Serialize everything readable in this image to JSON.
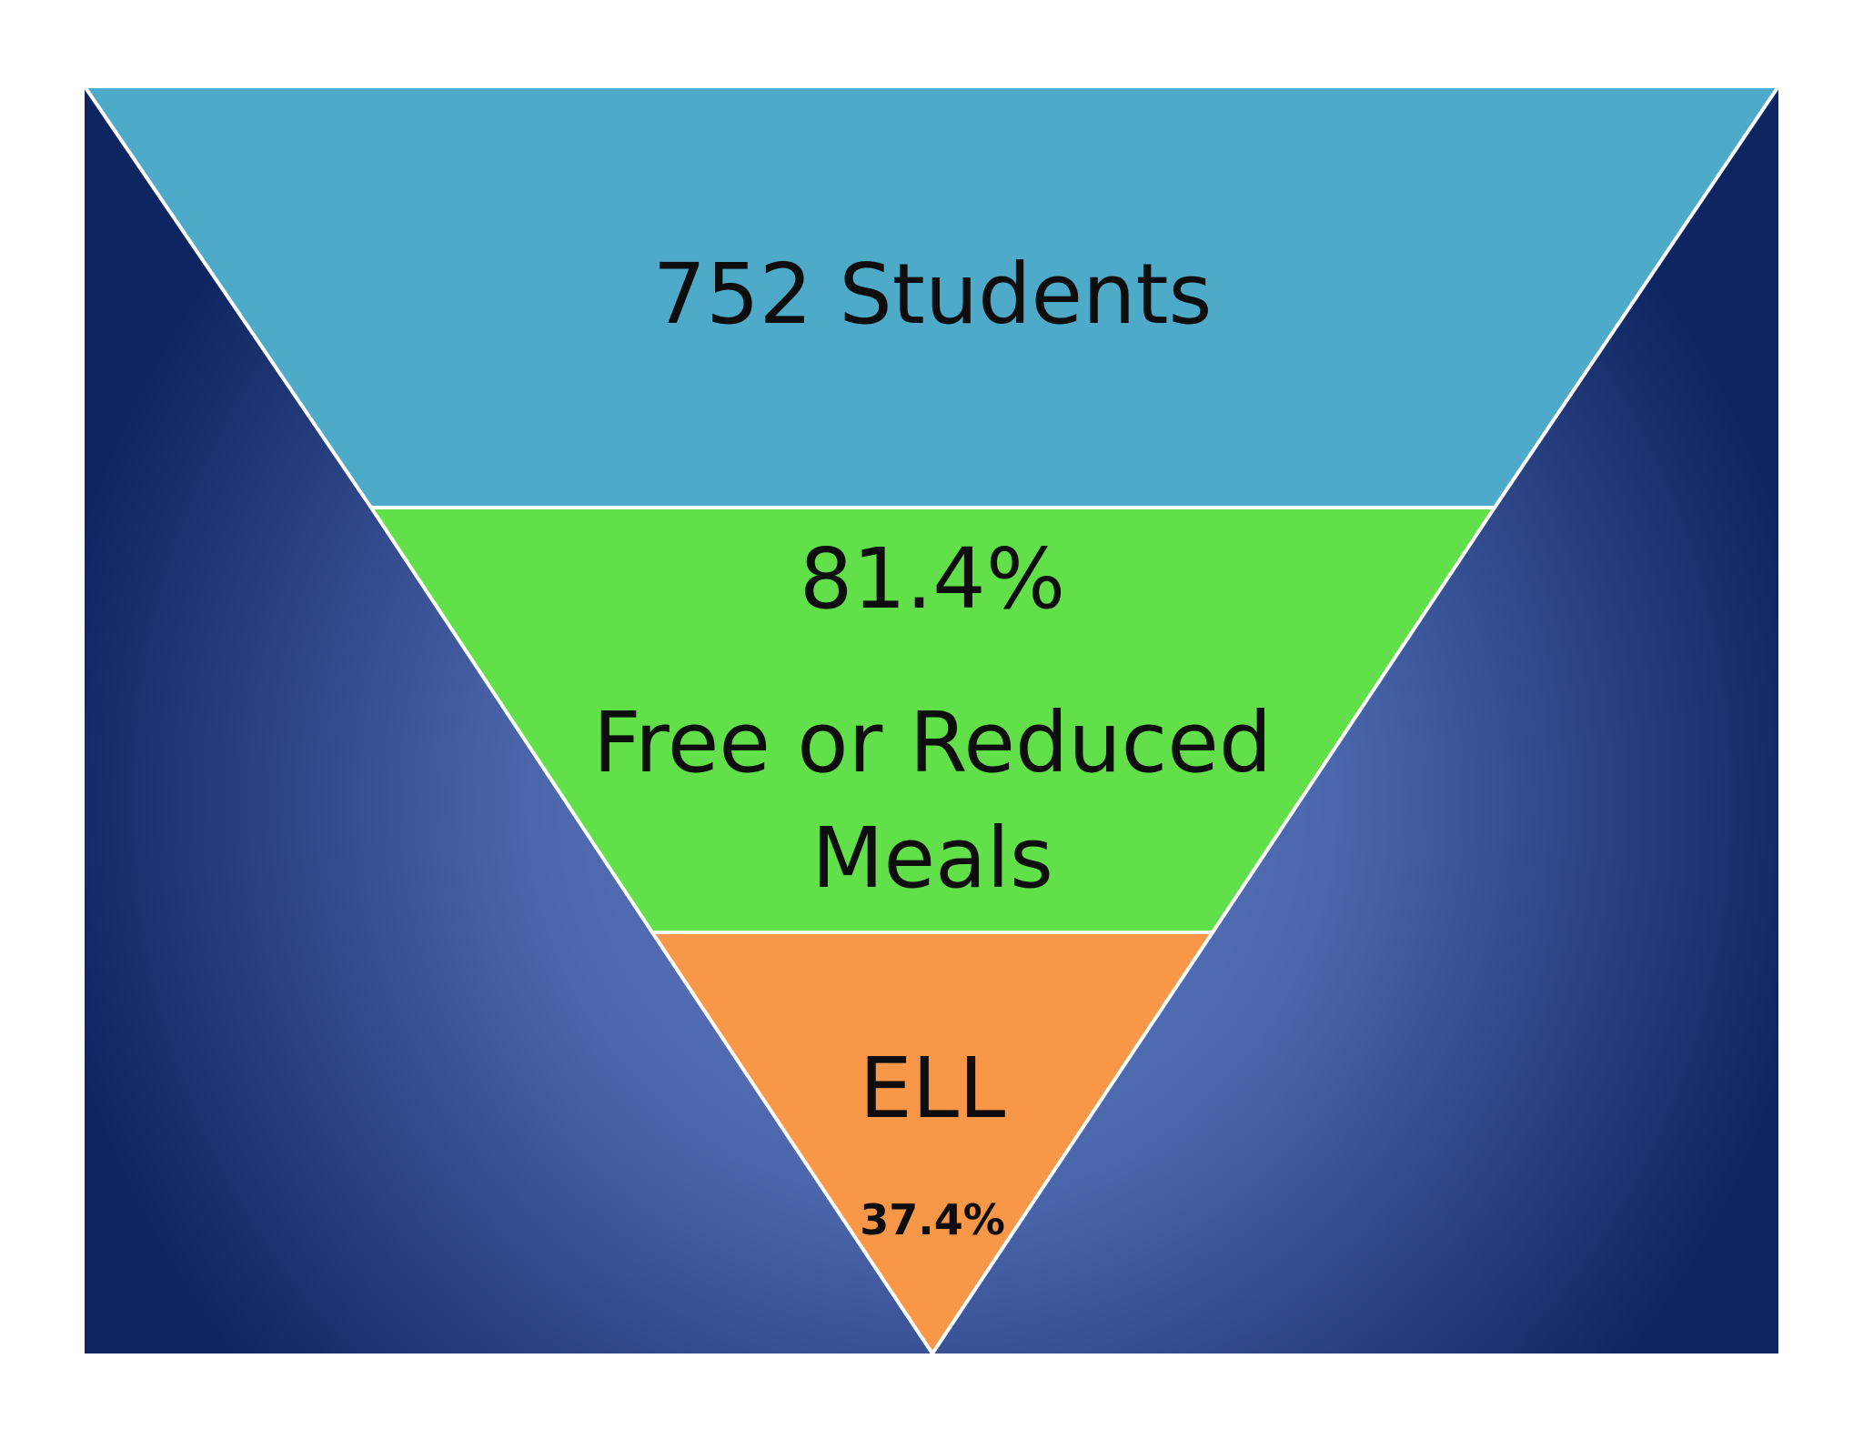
{
  "funnel": {
    "tiers": [
      {
        "id": "students",
        "lines": [
          "752 Students"
        ],
        "fill": "#4eaac9"
      },
      {
        "id": "free-reduced",
        "lines": [
          "81.4%",
          "Free or Reduced",
          "Meals"
        ],
        "fill": "#62e049"
      },
      {
        "id": "ell",
        "lines": [
          "ELL",
          "37.4%"
        ],
        "fill": "#f79747"
      }
    ],
    "colors": {
      "background_dark": "#0d2460",
      "background_light": "#5673b9",
      "divider": "#ffffff"
    }
  }
}
